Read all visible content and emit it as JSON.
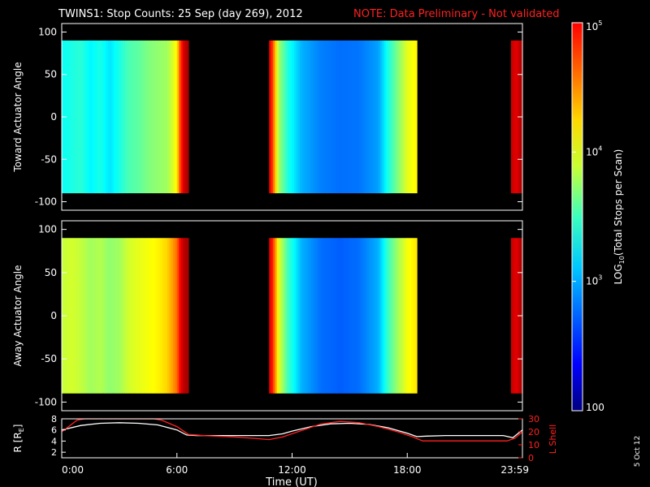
{
  "header": {
    "title": "TWINS1: Stop Counts: 25 Sep (day 269), 2012",
    "note": "NOTE: Data Preliminary - Not validated",
    "title_color": "#ffffff",
    "note_color": "#ff2020"
  },
  "date_stamp": "5 Oct 12",
  "colorbar": {
    "label_prefix": "LOG",
    "label_sub": "10",
    "label_suffix": "(Total Stops per Scan)",
    "tick_labels": [
      "100",
      "10",
      "10",
      "10"
    ],
    "tick_sups": [
      "",
      "3",
      "4",
      "5"
    ],
    "log_min": 2,
    "log_max": 5
  },
  "chart_data": [
    {
      "type": "heatmap",
      "ylabel": "Toward Actuator Angle",
      "ylim": [
        -110,
        110
      ],
      "yticks": [
        100,
        50,
        0,
        -50,
        -100
      ],
      "ytick_labels": [
        "100",
        "50",
        "0",
        "-50",
        "-100"
      ],
      "xlim": [
        0,
        24
      ],
      "angle_range": [
        -90,
        90
      ],
      "segments": [
        {
          "start": 0.0,
          "end": 6.6
        },
        {
          "start": 10.8,
          "end": 18.5
        },
        {
          "start": 23.4,
          "end": 24.0
        }
      ],
      "log_counts_profile": [
        [
          0.0,
          3.15
        ],
        [
          0.5,
          3.2
        ],
        [
          1.0,
          3.25
        ],
        [
          1.5,
          3.1
        ],
        [
          2.0,
          3.2
        ],
        [
          2.5,
          3.05
        ],
        [
          3.0,
          3.2
        ],
        [
          3.5,
          3.35
        ],
        [
          4.0,
          3.4
        ],
        [
          4.5,
          3.5
        ],
        [
          5.0,
          3.55
        ],
        [
          5.5,
          3.6
        ],
        [
          6.0,
          3.9
        ],
        [
          6.2,
          4.5
        ],
        [
          6.4,
          4.8
        ],
        [
          6.6,
          4.9
        ],
        [
          10.8,
          4.8
        ],
        [
          11.0,
          4.4
        ],
        [
          11.3,
          3.6
        ],
        [
          11.8,
          3.2
        ],
        [
          12.5,
          2.9
        ],
        [
          13.5,
          2.75
        ],
        [
          14.5,
          2.7
        ],
        [
          15.5,
          2.72
        ],
        [
          16.5,
          2.85
        ],
        [
          17.0,
          3.2
        ],
        [
          17.5,
          3.5
        ],
        [
          18.0,
          3.8
        ],
        [
          18.5,
          3.9
        ],
        [
          23.4,
          4.8
        ],
        [
          23.7,
          4.7
        ],
        [
          24.0,
          4.9
        ]
      ]
    },
    {
      "type": "heatmap",
      "ylabel": "Away Actuator Angle",
      "ylim": [
        -110,
        110
      ],
      "yticks": [
        100,
        50,
        0,
        -50,
        -100
      ],
      "ytick_labels": [
        "100",
        "50",
        "0",
        "-50",
        "-100"
      ],
      "xlim": [
        0,
        24
      ],
      "angle_range": [
        -90,
        90
      ],
      "segments": [
        {
          "start": 0.0,
          "end": 6.6
        },
        {
          "start": 10.8,
          "end": 18.5
        },
        {
          "start": 23.4,
          "end": 24.0
        }
      ],
      "log_counts_profile": [
        [
          0.0,
          3.7
        ],
        [
          0.5,
          3.75
        ],
        [
          1.0,
          3.7
        ],
        [
          1.5,
          3.6
        ],
        [
          2.0,
          3.65
        ],
        [
          2.5,
          3.55
        ],
        [
          3.0,
          3.6
        ],
        [
          3.5,
          3.75
        ],
        [
          4.0,
          3.8
        ],
        [
          4.5,
          3.85
        ],
        [
          5.0,
          3.9
        ],
        [
          5.5,
          4.0
        ],
        [
          6.0,
          4.3
        ],
        [
          6.2,
          4.7
        ],
        [
          6.4,
          4.85
        ],
        [
          6.6,
          4.9
        ],
        [
          10.8,
          4.8
        ],
        [
          11.0,
          4.5
        ],
        [
          11.3,
          3.8
        ],
        [
          11.8,
          3.3
        ],
        [
          12.5,
          2.9
        ],
        [
          13.5,
          2.7
        ],
        [
          14.5,
          2.65
        ],
        [
          15.5,
          2.7
        ],
        [
          16.5,
          2.9
        ],
        [
          17.0,
          3.3
        ],
        [
          17.5,
          3.6
        ],
        [
          18.0,
          3.85
        ],
        [
          18.5,
          3.95
        ],
        [
          23.4,
          4.8
        ],
        [
          23.7,
          4.7
        ],
        [
          24.0,
          4.9
        ]
      ]
    },
    {
      "type": "line",
      "xlabel": "Time (UT)",
      "ylabel": "R [R",
      "ylabel_sub": "E",
      "ylabel_suffix": "]",
      "ylabel_right": "L Shell",
      "ylim": [
        1,
        8
      ],
      "yticks": [
        8,
        6,
        4,
        2
      ],
      "ytick_labels": [
        "8",
        "6",
        "4",
        "2"
      ],
      "ylim_right": [
        0,
        30
      ],
      "yticks_right": [
        30,
        20,
        10,
        0
      ],
      "ytick_labels_right": [
        "30",
        "20",
        "10",
        "0"
      ],
      "xlim": [
        0,
        24
      ],
      "xtick_positions": [
        0,
        6,
        12,
        18,
        24
      ],
      "xtick_labels": [
        "0:00",
        "6:00",
        "12:00",
        "18:00",
        "23:59"
      ],
      "series": [
        {
          "color": "#ffffff",
          "axis": "left",
          "x": [
            0,
            1,
            2,
            3,
            4,
            5,
            6,
            6.5,
            7,
            8,
            9,
            10,
            10.8,
            11.5,
            12,
            13,
            14,
            15,
            16,
            17,
            18,
            18.5,
            19,
            20,
            21,
            22,
            23,
            23.5,
            24
          ],
          "y": [
            6.0,
            6.8,
            7.2,
            7.3,
            7.2,
            6.9,
            6.0,
            5.1,
            5.0,
            5.0,
            5.0,
            5.0,
            5.0,
            5.3,
            5.8,
            6.6,
            7.1,
            7.2,
            7.0,
            6.4,
            5.4,
            4.8,
            4.9,
            5.0,
            5.0,
            5.0,
            5.0,
            4.6,
            6.0
          ]
        },
        {
          "color": "#ff2020",
          "axis": "right",
          "x": [
            0,
            0.8,
            1.2,
            4.8,
            5.2,
            6,
            6.6,
            7.5,
            9,
            10,
            10.8,
            11.5,
            12.5,
            13.5,
            14.5,
            15.5,
            16.5,
            17.5,
            18.3,
            18.8,
            20,
            22,
            23.2,
            23.6,
            24
          ],
          "y": [
            20,
            29,
            30,
            30,
            29,
            24,
            18,
            17,
            16,
            15,
            14,
            16,
            21,
            26,
            28,
            27,
            24,
            20,
            16,
            13,
            13,
            13,
            13,
            15,
            20
          ]
        }
      ]
    }
  ]
}
